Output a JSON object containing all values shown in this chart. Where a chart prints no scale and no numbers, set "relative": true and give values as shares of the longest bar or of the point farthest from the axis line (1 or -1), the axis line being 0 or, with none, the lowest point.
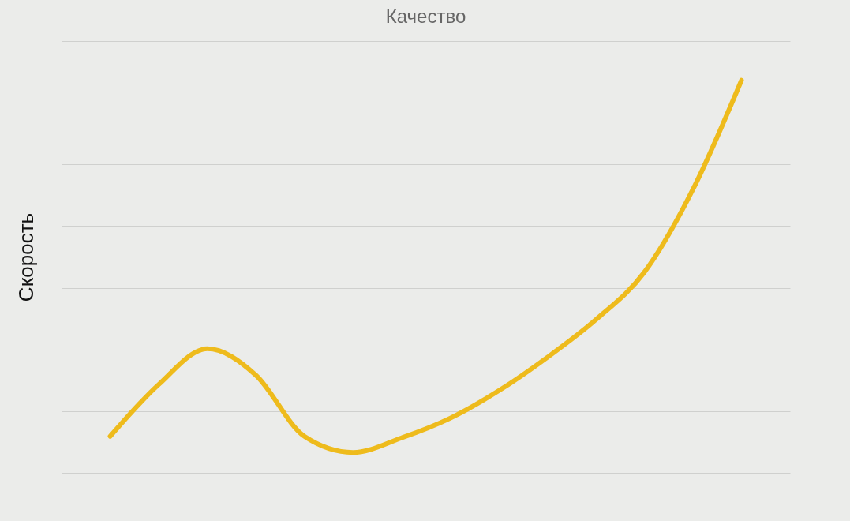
{
  "chart_data": {
    "type": "line",
    "title": "Качество",
    "ylabel": "Скорость",
    "relative": true,
    "grid": "y",
    "categories": [
      null,
      null,
      null,
      null,
      null,
      null,
      null,
      null,
      null,
      null,
      null,
      null,
      null,
      null
    ],
    "series": [
      {
        "color": "#eebb1c",
        "values": [
          0.093,
          0.225,
          0.316,
          0.249,
          0.093,
          0.052,
          0.089,
          0.139,
          0.209,
          0.294,
          0.39,
          0.511,
          0.722,
          1.0
        ]
      }
    ]
  }
}
